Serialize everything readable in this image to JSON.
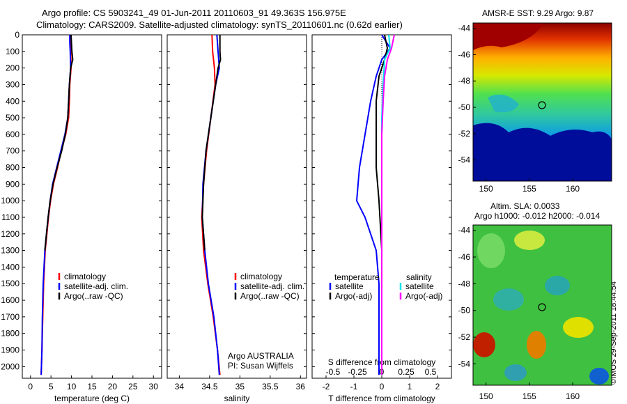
{
  "header": {
    "title_line1": "Argo profile: CS 5903241_49 01-Jun-2011 20110603_91 49.363S 156.975E",
    "title_line2": "Climatology: CARS2009. Satellite-adjusted climatology: synTS_20110601.nc (0.62d earlier)"
  },
  "credit": "©IMOS 29-Sep-2011 18:44:54",
  "legend_temp": [
    "climatology",
    "satellite-adj. clim.",
    "Argo(..raw -QC)"
  ],
  "legend_sal": [
    "climatology",
    "satellite-adj. clim.",
    "Argo(..raw -QC)"
  ],
  "legend_diff": {
    "temperature_heading": "temperature",
    "salinity_heading": "salinity",
    "entries": [
      "satellite",
      "Argo(-adj)",
      "satellite",
      "Argo(-adj)"
    ]
  },
  "float_info": [
    "Argo AUSTRALIA",
    "PI: Susan Wijffels"
  ],
  "sst_map": {
    "title": "AMSR-E SST: 9.29  Argo: 9.87"
  },
  "sla_map": {
    "title_line1": "Altim. SLA: 0.0033",
    "title_line2": "Argo h1000: -0.012 h2000: -0.014"
  },
  "colors": {
    "climatology": "#ff0000",
    "satellite": "#0000ff",
    "argo": "#000000",
    "sat_sal": "#00e5ee",
    "argo_sal": "#ff00ff"
  },
  "chart_data": [
    {
      "type": "line",
      "xlabel": "temperature (deg C)",
      "ylabel": "",
      "xlim": [
        -2,
        32
      ],
      "ylim": [
        2070,
        0
      ],
      "x_ticks": [
        "0",
        "5",
        "10",
        "15",
        "20",
        "25",
        "30"
      ],
      "y_ticks": [
        "0",
        "100",
        "200",
        "300",
        "400",
        "500",
        "600",
        "700",
        "800",
        "900",
        "1000",
        "1100",
        "1200",
        "1300",
        "1400",
        "1500",
        "1600",
        "1700",
        "1800",
        "1900",
        "2000"
      ],
      "series": [
        {
          "name": "climatology",
          "color": "#ff0000",
          "points": [
            [
              9.6,
              0
            ],
            [
              9.7,
              50
            ],
            [
              9.8,
              100
            ],
            [
              9.9,
              200
            ],
            [
              9.6,
              300
            ],
            [
              9.5,
              400
            ],
            [
              9.3,
              500
            ],
            [
              8.6,
              600
            ],
            [
              7.5,
              700
            ],
            [
              6.6,
              800
            ],
            [
              5.6,
              900
            ],
            [
              4.9,
              1000
            ],
            [
              4.4,
              1100
            ],
            [
              4.0,
              1200
            ],
            [
              3.6,
              1300
            ],
            [
              3.4,
              1400
            ],
            [
              3.2,
              1500
            ],
            [
              3.0,
              1700
            ],
            [
              2.8,
              1900
            ],
            [
              2.6,
              2050
            ]
          ]
        },
        {
          "name": "satellite-adj. clim.",
          "color": "#0000ff",
          "points": [
            [
              9.6,
              0
            ],
            [
              9.6,
              50
            ],
            [
              9.7,
              100
            ],
            [
              9.8,
              200
            ],
            [
              9.5,
              300
            ],
            [
              9.3,
              400
            ],
            [
              9.1,
              500
            ],
            [
              8.4,
              600
            ],
            [
              7.4,
              700
            ],
            [
              6.4,
              800
            ],
            [
              5.4,
              900
            ],
            [
              4.8,
              1000
            ],
            [
              4.3,
              1100
            ],
            [
              3.9,
              1200
            ],
            [
              3.5,
              1300
            ],
            [
              3.3,
              1400
            ],
            [
              3.1,
              1500
            ],
            [
              2.9,
              1700
            ],
            [
              2.8,
              1900
            ],
            [
              2.6,
              2050
            ]
          ]
        },
        {
          "name": "Argo(..raw -QC)",
          "color": "#000000",
          "points": [
            [
              9.9,
              0
            ],
            [
              10.0,
              50
            ],
            [
              10.1,
              100
            ],
            [
              10.3,
              150
            ],
            [
              9.8,
              200
            ],
            [
              9.5,
              300
            ],
            [
              9.3,
              400
            ],
            [
              9.1,
              500
            ],
            [
              8.5,
              600
            ],
            [
              7.6,
              700
            ],
            [
              6.5,
              800
            ],
            [
              5.5,
              900
            ],
            [
              4.8,
              1000
            ],
            [
              4.3,
              1100
            ],
            [
              3.9,
              1200
            ],
            [
              3.5,
              1300
            ]
          ]
        }
      ]
    },
    {
      "type": "line",
      "xlabel": "salinity",
      "ylabel": "",
      "xlim": [
        33.8,
        36.1
      ],
      "ylim": [
        2070,
        0
      ],
      "x_ticks": [
        "34",
        "34.5",
        "35",
        "35.5",
        "36"
      ],
      "series": [
        {
          "name": "climatology",
          "color": "#ff0000",
          "points": [
            [
              34.54,
              0
            ],
            [
              34.55,
              100
            ],
            [
              34.58,
              200
            ],
            [
              34.59,
              300
            ],
            [
              34.52,
              500
            ],
            [
              34.45,
              700
            ],
            [
              34.4,
              900
            ],
            [
              34.37,
              1100
            ],
            [
              34.4,
              1300
            ],
            [
              34.47,
              1500
            ],
            [
              34.56,
              1700
            ],
            [
              34.63,
              1900
            ],
            [
              34.67,
              2050
            ]
          ]
        },
        {
          "name": "satellite-adj. clim.",
          "color": "#0000ff",
          "points": [
            [
              34.62,
              0
            ],
            [
              34.64,
              100
            ],
            [
              34.66,
              200
            ],
            [
              34.6,
              300
            ],
            [
              34.52,
              500
            ],
            [
              34.44,
              700
            ],
            [
              34.39,
              900
            ],
            [
              34.38,
              1100
            ],
            [
              34.42,
              1300
            ],
            [
              34.48,
              1500
            ],
            [
              34.57,
              1700
            ],
            [
              34.63,
              1900
            ],
            [
              34.66,
              2050
            ]
          ]
        },
        {
          "name": "Argo(..raw -QC)",
          "color": "#000000",
          "points": [
            [
              34.67,
              0
            ],
            [
              34.67,
              100
            ],
            [
              34.68,
              150
            ],
            [
              34.64,
              200
            ],
            [
              34.6,
              300
            ],
            [
              34.52,
              500
            ],
            [
              34.44,
              700
            ],
            [
              34.4,
              900
            ],
            [
              34.38,
              1100
            ],
            [
              34.42,
              1300
            ]
          ]
        }
      ]
    },
    {
      "type": "line",
      "xlabel": "T difference from climatology",
      "x2label": "S difference from climatology",
      "ylabel": "",
      "xlim": [
        -2.5,
        2.5
      ],
      "ylim": [
        2070,
        0
      ],
      "x_ticks": [
        "-2",
        "-1",
        "0",
        "1",
        "2"
      ],
      "x2_ticks": [
        "-0.5",
        "-0.25",
        "0",
        "0.25",
        "0.5"
      ],
      "series": [
        {
          "name": "satellite",
          "group": "temperature",
          "color": "#0000ff",
          "points": [
            [
              0.0,
              0
            ],
            [
              0.3,
              80
            ],
            [
              0.0,
              150
            ],
            [
              -0.2,
              250
            ],
            [
              -0.4,
              400
            ],
            [
              -0.6,
              600
            ],
            [
              -0.8,
              800
            ],
            [
              -0.9,
              1000
            ],
            [
              -0.6,
              1100
            ],
            [
              -0.2,
              1300
            ],
            [
              -0.1,
              1500
            ],
            [
              -0.1,
              2050
            ]
          ]
        },
        {
          "name": "Argo(-adj)",
          "group": "temperature",
          "color": "#000000",
          "points": [
            [
              0.1,
              0
            ],
            [
              0.2,
              80
            ],
            [
              0.1,
              150
            ],
            [
              -0.1,
              250
            ],
            [
              -0.2,
              400
            ],
            [
              -0.2,
              600
            ],
            [
              -0.2,
              800
            ],
            [
              -0.1,
              1000
            ],
            [
              0.0,
              1300
            ]
          ]
        },
        {
          "name": "satellite",
          "group": "salinity",
          "color": "#00e5ee",
          "points": [
            [
              0.25,
              0
            ],
            [
              0.3,
              80
            ],
            [
              0.1,
              150
            ],
            [
              0.05,
              300
            ],
            [
              0.0,
              500
            ],
            [
              0.0,
              1000
            ],
            [
              0.0,
              2050
            ]
          ]
        },
        {
          "name": "Argo(-adj)",
          "group": "salinity",
          "color": "#ff00ff",
          "points": [
            [
              0.45,
              0
            ],
            [
              0.35,
              80
            ],
            [
              0.2,
              150
            ],
            [
              0.1,
              250
            ],
            [
              0.05,
              400
            ],
            [
              0.0,
              600
            ],
            [
              0.0,
              2050
            ]
          ]
        }
      ]
    },
    {
      "type": "heatmap",
      "title": "AMSR-E SST: 9.29  Argo: 9.87",
      "x_ticks": [
        "150",
        "155",
        "160"
      ],
      "y_ticks": [
        "-44",
        "-46",
        "-48",
        "-50",
        "-52",
        "-54"
      ],
      "xlim": [
        148.5,
        164.5
      ],
      "ylim": [
        -55.6,
        -43.6
      ]
    },
    {
      "type": "heatmap",
      "title": "Altim. SLA: 0.0033",
      "x_ticks": [
        "150",
        "155",
        "160"
      ],
      "y_ticks": [
        "-44",
        "-46",
        "-48",
        "-50",
        "-52",
        "-54"
      ],
      "xlim": [
        148.5,
        164.5
      ],
      "ylim": [
        -55.6,
        -43.6
      ]
    }
  ]
}
